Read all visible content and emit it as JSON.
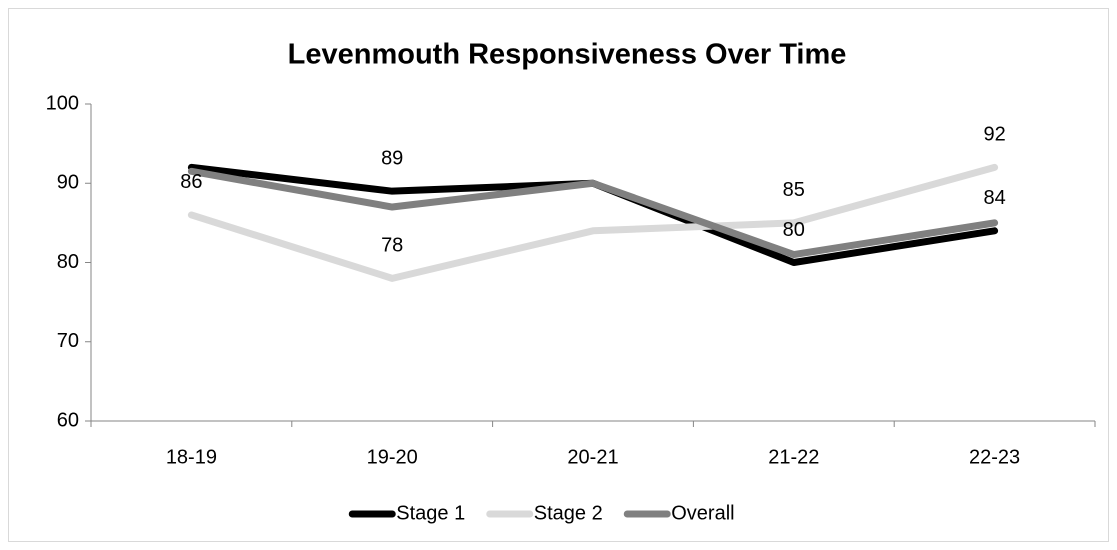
{
  "chart_data": {
    "type": "line",
    "title": "Levenmouth Responsiveness Over Time",
    "categories": [
      "18-19",
      "19-20",
      "20-21",
      "21-22",
      "22-23"
    ],
    "series": [
      {
        "name": "Stage 1",
        "color": "#000000",
        "values": [
          92,
          89,
          90,
          80,
          84
        ],
        "labels": [
          false,
          true,
          false,
          true,
          true
        ]
      },
      {
        "name": "Stage 2",
        "color": "#d9d9d9",
        "values": [
          86,
          78,
          84,
          85,
          92
        ],
        "labels": [
          true,
          true,
          false,
          true,
          true
        ]
      },
      {
        "name": "Overall",
        "color": "#808080",
        "values": [
          91.5,
          87,
          90,
          81,
          85
        ],
        "labels": [
          false,
          false,
          false,
          false,
          false
        ]
      }
    ],
    "ylim": [
      60,
      100
    ],
    "yticks": [
      60,
      70,
      80,
      90,
      100
    ],
    "grid": false,
    "legend": "bottom"
  }
}
